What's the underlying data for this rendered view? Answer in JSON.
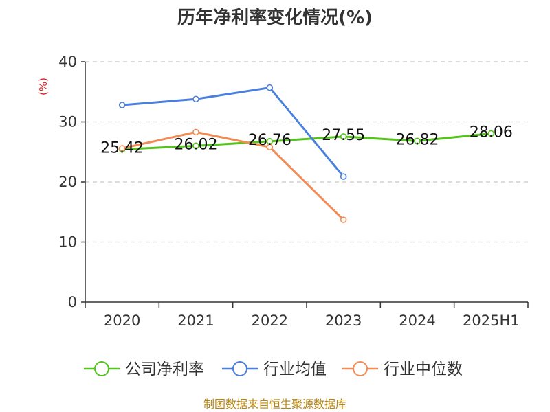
{
  "chart_data": {
    "type": "line",
    "title": "历年净利率变化情况(%)",
    "ylabel": "(%)",
    "xlabel": "",
    "categories": [
      "2020",
      "2021",
      "2022",
      "2023",
      "2024",
      "2025H1"
    ],
    "ylim": [
      0,
      40
    ],
    "yticks": [
      0,
      10,
      20,
      30,
      40
    ],
    "grid": true,
    "legend_position": "bottom",
    "series": [
      {
        "name": "公司净利率",
        "color": "#52c41a",
        "values": [
          25.42,
          26.02,
          26.76,
          27.55,
          26.82,
          28.06
        ],
        "labels": [
          "25.42",
          "26.02",
          "26.76",
          "27.55",
          "26.82",
          "28.06"
        ]
      },
      {
        "name": "行业均值",
        "color": "#4a7fdc",
        "values": [
          32.8,
          33.8,
          35.7,
          20.9,
          null,
          null
        ]
      },
      {
        "name": "行业中位数",
        "color": "#f28b54",
        "values": [
          25.6,
          28.3,
          25.8,
          13.7,
          null,
          null
        ]
      }
    ]
  },
  "source": "制图数据来自恒生聚源数据库"
}
